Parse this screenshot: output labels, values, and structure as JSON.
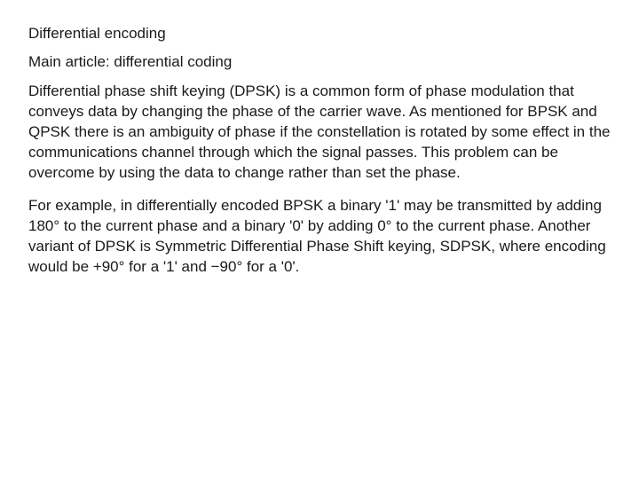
{
  "document": {
    "heading": "Differential encoding",
    "subheading": "Main article: differential coding",
    "paragraph1": "Differential phase shift keying (DPSK) is a common form of phase modulation that conveys data by changing the phase of the carrier wave. As mentioned for BPSK and QPSK there is an ambiguity of phase if the constellation is rotated by some effect in the communications channel through which the signal passes. This problem can be overcome by using the data to change rather than set the phase.",
    "paragraph2": "For example, in differentially encoded BPSK a binary '1' may be transmitted by adding 180° to the current phase and a binary '0' by adding 0° to the current phase. Another variant of DPSK is Symmetric Differential Phase Shift keying, SDPSK, where encoding would be +90° for a '1' and −90° for a '0'."
  },
  "styles": {
    "background_color": "#ffffff",
    "text_color": "#1a1a1a",
    "font_size": 17,
    "line_height": 1.35
  }
}
